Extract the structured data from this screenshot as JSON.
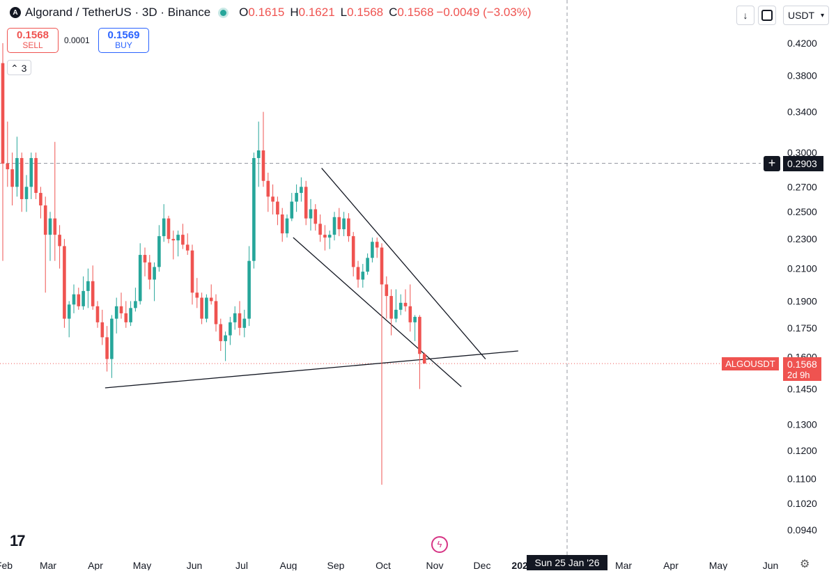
{
  "header": {
    "logo_icon": "algorand-logo-icon",
    "title": "Algorand / TetherUS · 3D · Binance",
    "ohlc": [
      {
        "k": "O",
        "v": "0.1615"
      },
      {
        "k": "H",
        "v": "0.1621"
      },
      {
        "k": "L",
        "v": "0.1568"
      },
      {
        "k": "C",
        "v": "0.1568"
      },
      {
        "k": "",
        "v": "−0.0049 (−3.03%)"
      }
    ]
  },
  "trade": {
    "sell_price": "0.1568",
    "sell_label": "SELL",
    "spread": "0.0001",
    "buy_price": "0.1569",
    "buy_label": "BUY"
  },
  "indicator_count": "3",
  "toolbar": {
    "currency": "USDT"
  },
  "tags": {
    "crosshair_price": "0.2903",
    "symbol": "ALGOUSDT",
    "last_price": "0.1568",
    "countdown": "2d 9h",
    "crosshair_time": "Sun 25 Jan '26"
  },
  "colors": {
    "up": "#26a69a",
    "down": "#ef5350",
    "accent": "#2962ff"
  },
  "chart_data": {
    "type": "candlestick",
    "timeframe": "3D",
    "scale": "log",
    "y_ticks": [
      "0.4200",
      "0.3800",
      "0.3400",
      "0.3000",
      "0.2700",
      "0.2500",
      "0.2300",
      "0.2100",
      "0.1900",
      "0.1750",
      "0.1600",
      "0.1450",
      "0.1300",
      "0.1200",
      "0.1100",
      "0.1020",
      "0.0940"
    ],
    "x_ticks": [
      "Feb",
      "Mar",
      "Apr",
      "May",
      "Jun",
      "Jul",
      "Aug",
      "Sep",
      "Oct",
      "Nov",
      "Dec",
      "2026",
      "Mar",
      "Apr",
      "May",
      "Jun"
    ],
    "crosshair": {
      "price": 0.2903,
      "time": "Sun 25 Jan '26"
    },
    "last_price": 0.1568,
    "candles": [
      [
        0.395,
        0.42,
        0.215,
        0.29
      ],
      [
        0.29,
        0.33,
        0.27,
        0.285
      ],
      [
        0.285,
        0.3,
        0.255,
        0.27
      ],
      [
        0.27,
        0.315,
        0.262,
        0.295
      ],
      [
        0.295,
        0.3,
        0.25,
        0.26
      ],
      [
        0.26,
        0.28,
        0.25,
        0.27
      ],
      [
        0.27,
        0.3,
        0.26,
        0.295
      ],
      [
        0.295,
        0.3,
        0.26,
        0.265
      ],
      [
        0.265,
        0.27,
        0.245,
        0.255
      ],
      [
        0.255,
        0.262,
        0.195,
        0.233
      ],
      [
        0.233,
        0.25,
        0.215,
        0.245
      ],
      [
        0.245,
        0.31,
        0.215,
        0.233
      ],
      [
        0.233,
        0.24,
        0.21,
        0.225
      ],
      [
        0.225,
        0.23,
        0.175,
        0.18
      ],
      [
        0.18,
        0.19,
        0.17,
        0.188
      ],
      [
        0.188,
        0.2,
        0.183,
        0.194
      ],
      [
        0.194,
        0.198,
        0.185,
        0.187
      ],
      [
        0.187,
        0.205,
        0.185,
        0.196
      ],
      [
        0.196,
        0.21,
        0.186,
        0.202
      ],
      [
        0.202,
        0.212,
        0.185,
        0.187
      ],
      [
        0.187,
        0.19,
        0.175,
        0.178
      ],
      [
        0.178,
        0.185,
        0.166,
        0.17
      ],
      [
        0.17,
        0.176,
        0.153,
        0.159
      ],
      [
        0.159,
        0.182,
        0.15,
        0.18
      ],
      [
        0.18,
        0.192,
        0.172,
        0.187
      ],
      [
        0.187,
        0.195,
        0.18,
        0.183
      ],
      [
        0.183,
        0.19,
        0.175,
        0.178
      ],
      [
        0.178,
        0.19,
        0.176,
        0.186
      ],
      [
        0.186,
        0.198,
        0.184,
        0.19
      ],
      [
        0.19,
        0.227,
        0.188,
        0.219
      ],
      [
        0.219,
        0.224,
        0.205,
        0.214
      ],
      [
        0.214,
        0.219,
        0.197,
        0.203
      ],
      [
        0.203,
        0.214,
        0.19,
        0.211
      ],
      [
        0.211,
        0.24,
        0.208,
        0.232
      ],
      [
        0.232,
        0.256,
        0.228,
        0.245
      ],
      [
        0.245,
        0.247,
        0.227,
        0.23
      ],
      [
        0.23,
        0.236,
        0.216,
        0.229
      ],
      [
        0.229,
        0.236,
        0.218,
        0.233
      ],
      [
        0.233,
        0.241,
        0.223,
        0.226
      ],
      [
        0.226,
        0.234,
        0.219,
        0.222
      ],
      [
        0.222,
        0.226,
        0.188,
        0.195
      ],
      [
        0.195,
        0.204,
        0.186,
        0.192
      ],
      [
        0.192,
        0.195,
        0.177,
        0.18
      ],
      [
        0.18,
        0.194,
        0.178,
        0.192
      ],
      [
        0.192,
        0.2,
        0.188,
        0.19
      ],
      [
        0.19,
        0.194,
        0.173,
        0.177
      ],
      [
        0.177,
        0.18,
        0.163,
        0.168
      ],
      [
        0.168,
        0.173,
        0.158,
        0.171
      ],
      [
        0.171,
        0.181,
        0.166,
        0.178
      ],
      [
        0.178,
        0.187,
        0.174,
        0.183
      ],
      [
        0.183,
        0.19,
        0.171,
        0.175
      ],
      [
        0.175,
        0.185,
        0.17,
        0.18
      ],
      [
        0.18,
        0.225,
        0.176,
        0.215
      ],
      [
        0.215,
        0.3,
        0.21,
        0.295
      ],
      [
        0.295,
        0.33,
        0.27,
        0.302
      ],
      [
        0.302,
        0.34,
        0.27,
        0.275
      ],
      [
        0.275,
        0.282,
        0.25,
        0.262
      ],
      [
        0.262,
        0.272,
        0.248,
        0.258
      ],
      [
        0.258,
        0.262,
        0.24,
        0.248
      ],
      [
        0.248,
        0.253,
        0.228,
        0.234
      ],
      [
        0.234,
        0.248,
        0.231,
        0.245
      ],
      [
        0.245,
        0.265,
        0.243,
        0.258
      ],
      [
        0.258,
        0.272,
        0.25,
        0.265
      ],
      [
        0.265,
        0.278,
        0.258,
        0.27
      ],
      [
        0.27,
        0.275,
        0.24,
        0.245
      ],
      [
        0.245,
        0.26,
        0.236,
        0.252
      ],
      [
        0.252,
        0.256,
        0.236,
        0.241
      ],
      [
        0.241,
        0.248,
        0.228,
        0.233
      ],
      [
        0.233,
        0.24,
        0.222,
        0.231
      ],
      [
        0.231,
        0.236,
        0.223,
        0.233
      ],
      [
        0.233,
        0.25,
        0.229,
        0.246
      ],
      [
        0.246,
        0.253,
        0.232,
        0.237
      ],
      [
        0.237,
        0.25,
        0.232,
        0.245
      ],
      [
        0.245,
        0.249,
        0.228,
        0.232
      ],
      [
        0.232,
        0.235,
        0.205,
        0.211
      ],
      [
        0.211,
        0.215,
        0.198,
        0.203
      ],
      [
        0.203,
        0.213,
        0.198,
        0.208
      ],
      [
        0.208,
        0.22,
        0.206,
        0.217
      ],
      [
        0.217,
        0.231,
        0.214,
        0.228
      ],
      [
        0.228,
        0.231,
        0.217,
        0.224
      ],
      [
        0.224,
        0.227,
        0.108,
        0.2
      ],
      [
        0.2,
        0.205,
        0.18,
        0.193
      ],
      [
        0.193,
        0.197,
        0.171,
        0.18
      ],
      [
        0.18,
        0.197,
        0.178,
        0.185
      ],
      [
        0.185,
        0.194,
        0.182,
        0.189
      ],
      [
        0.189,
        0.197,
        0.184,
        0.187
      ],
      [
        0.187,
        0.2,
        0.173,
        0.178
      ],
      [
        0.178,
        0.182,
        0.168,
        0.181
      ],
      [
        0.181,
        0.182,
        0.145,
        0.1615
      ],
      [
        0.1615,
        0.1621,
        0.1568,
        0.1568
      ]
    ],
    "trendlines": [
      {
        "from": [
          0.1455,
          0.1455
        ],
        "to": [
          0.163,
          0.163
        ]
      },
      {
        "from": [
          0.231,
          0.231
        ],
        "to": [
          0.146,
          0.146
        ]
      },
      {
        "from": [
          0.286,
          0.286
        ],
        "to": [
          0.159,
          0.159
        ]
      }
    ]
  }
}
